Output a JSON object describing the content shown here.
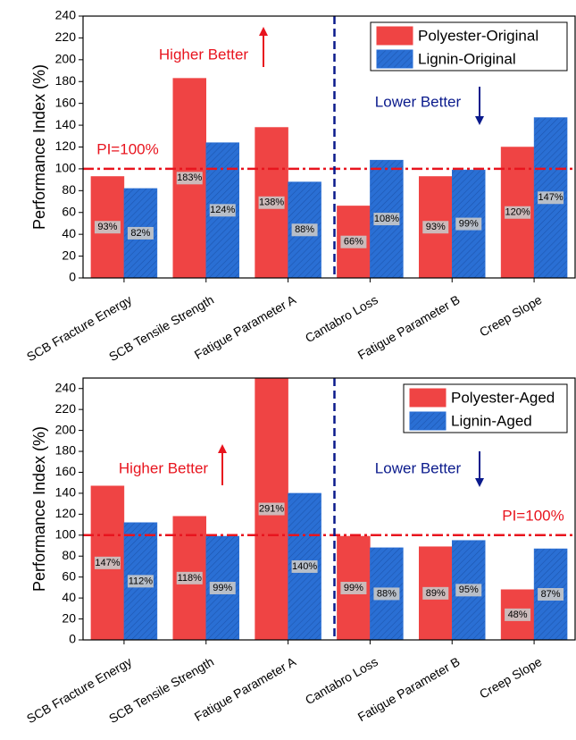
{
  "chart_data": [
    {
      "type": "bar",
      "y_label": "Performance Index (%)",
      "categories": [
        "SCB Fracture Energy",
        "SCB Tensile Strength",
        "Fatigue Parameter A",
        "Cantabro Loss",
        "Fatigue Parameter B",
        "Creep Slope"
      ],
      "series": [
        {
          "name": "Polyester-Original",
          "color": "#ef4444",
          "values": [
            93,
            183,
            138,
            66,
            93,
            120
          ],
          "value_labels": [
            "93%",
            "183%",
            "138%",
            "66%",
            "93%",
            "120%"
          ]
        },
        {
          "name": "Lignin-Original",
          "color": "#2a6fd4",
          "values": [
            82,
            124,
            88,
            108,
            99,
            147
          ],
          "value_labels": [
            "82%",
            "124%",
            "88%",
            "108%",
            "99%",
            "147%"
          ]
        }
      ],
      "ylim": [
        0,
        240
      ],
      "yticks": [
        0,
        20,
        40,
        60,
        80,
        100,
        120,
        140,
        160,
        180,
        200,
        220,
        240
      ],
      "reference_line": {
        "value": 100,
        "label": "PI=100%"
      },
      "annotations": [
        "Higher Better",
        "Lower Better"
      ],
      "legend": "upper right"
    },
    {
      "type": "bar",
      "y_label": "Performance Index (%)",
      "categories": [
        "SCB Fracture Energy",
        "SCB Tensile Strength",
        "Fatigue Parameter A",
        "Cantabro Loss",
        "Fatigue Parameter B",
        "Creep Slope"
      ],
      "series": [
        {
          "name": "Polyester-Aged",
          "color": "#ef4444",
          "values": [
            147,
            118,
            291,
            99,
            89,
            48
          ],
          "value_labels": [
            "147%",
            "118%",
            "291%",
            "99%",
            "89%",
            "48%"
          ]
        },
        {
          "name": "Lignin-Aged",
          "color": "#2a6fd4",
          "values": [
            112,
            99,
            140,
            88,
            95,
            87
          ],
          "value_labels": [
            "112%",
            "99%",
            "140%",
            "88%",
            "95%",
            "87%"
          ]
        }
      ],
      "ylim": [
        0,
        250
      ],
      "yticks": [
        0,
        20,
        40,
        60,
        80,
        100,
        120,
        140,
        160,
        180,
        200,
        220,
        240
      ],
      "reference_line": {
        "value": 100,
        "label": "PI=100%"
      },
      "annotations": [
        "Higher Better",
        "Lower Better"
      ],
      "legend": "upper right"
    }
  ]
}
